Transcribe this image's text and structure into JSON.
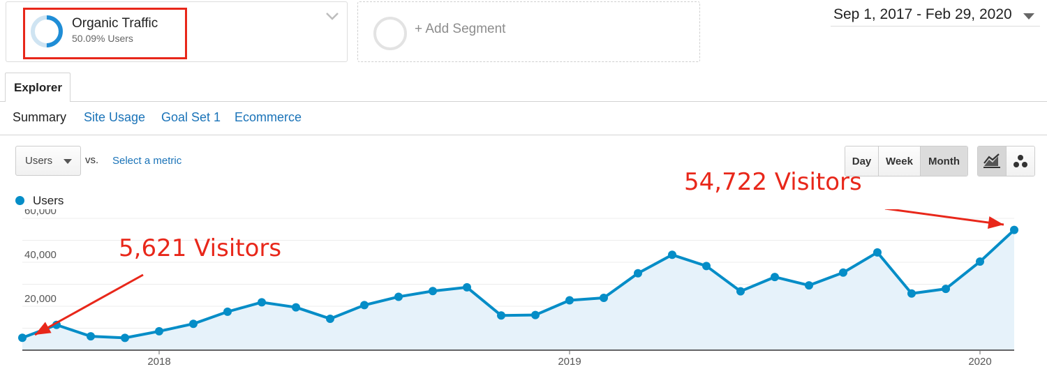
{
  "segment": {
    "name": "Organic Traffic",
    "percent": "50.09% Users"
  },
  "add_segment": {
    "label": "+ Add Segment"
  },
  "date_range": {
    "text": "Sep 1, 2017 - Feb 29, 2020"
  },
  "tabs": {
    "explorer": "Explorer"
  },
  "subnav": {
    "summary": "Summary",
    "site_usage": "Site Usage",
    "goal_set": "Goal Set 1",
    "ecommerce": "Ecommerce"
  },
  "metric": {
    "selected": "Users",
    "vs": "vs.",
    "select_metric": "Select a metric"
  },
  "period": {
    "day": "Day",
    "week": "Week",
    "month": "Month",
    "active": "Month"
  },
  "legend": {
    "label": "Users"
  },
  "annotations": {
    "left": "5,621 Visitors",
    "right": "54,722 Visitors"
  },
  "colors": {
    "line": "#058dc7",
    "fill": "#e6f2fa",
    "annotation": "#e8271a",
    "link": "#1a73b8"
  },
  "chart_data": {
    "type": "area",
    "series": [
      {
        "name": "Users",
        "x": [
          "2017-09",
          "2017-10",
          "2017-11",
          "2017-12",
          "2018-01",
          "2018-02",
          "2018-03",
          "2018-04",
          "2018-05",
          "2018-06",
          "2018-07",
          "2018-08",
          "2018-09",
          "2018-10",
          "2018-11",
          "2018-12",
          "2019-01",
          "2019-02",
          "2019-03",
          "2019-04",
          "2019-05",
          "2019-06",
          "2019-07",
          "2019-08",
          "2019-09",
          "2019-10",
          "2019-11",
          "2019-12",
          "2020-01",
          "2020-02"
        ],
        "values": [
          5621,
          11500,
          6300,
          5600,
          8600,
          12000,
          17500,
          21800,
          19500,
          14300,
          20500,
          24300,
          26900,
          28600,
          15800,
          16000,
          22700,
          23800,
          35000,
          43400,
          38300,
          26800,
          33300,
          29500,
          35300,
          44500,
          25800,
          27900,
          40300,
          54722
        ]
      }
    ],
    "ylim": [
      0,
      60000
    ],
    "yticks": [
      "20,000",
      "40,000",
      "60,000"
    ],
    "yticks_values": [
      20000,
      40000,
      60000
    ],
    "xticks": [
      "2018",
      "2019",
      "2020"
    ],
    "xticks_months": [
      "2018-01",
      "2019-01",
      "2020-01"
    ],
    "grid": true,
    "legend": "top-left"
  }
}
